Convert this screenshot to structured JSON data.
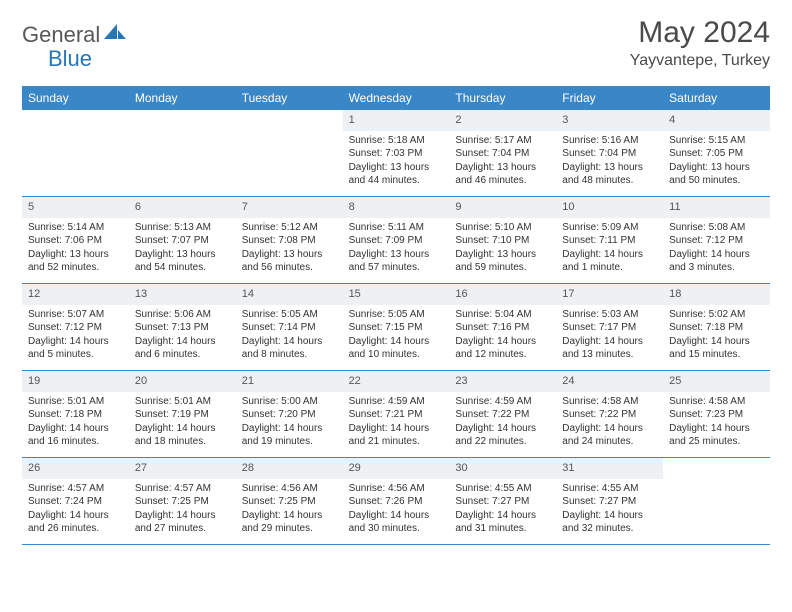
{
  "brand": {
    "part1": "General",
    "part2": "Blue"
  },
  "title": "May 2024",
  "location": "Yayvantepe, Turkey",
  "weekdays": [
    "Sunday",
    "Monday",
    "Tuesday",
    "Wednesday",
    "Thursday",
    "Friday",
    "Saturday"
  ],
  "colors": {
    "header_bg": "#3a87c8",
    "header_text": "#ffffff",
    "daynum_bg": "#eef1f3",
    "row_border": "#3a87c8",
    "title_color": "#4a4a4a",
    "body_text": "#333333"
  },
  "typography": {
    "month_title_fontsize": 30,
    "location_fontsize": 16,
    "weekday_fontsize": 12,
    "daynum_fontsize": 11,
    "body_fontsize": 10
  },
  "weeks": [
    [
      {
        "n": "",
        "sr": "",
        "ss": "",
        "dl": ""
      },
      {
        "n": "",
        "sr": "",
        "ss": "",
        "dl": ""
      },
      {
        "n": "",
        "sr": "",
        "ss": "",
        "dl": ""
      },
      {
        "n": "1",
        "sr": "Sunrise: 5:18 AM",
        "ss": "Sunset: 7:03 PM",
        "dl": "Daylight: 13 hours and 44 minutes."
      },
      {
        "n": "2",
        "sr": "Sunrise: 5:17 AM",
        "ss": "Sunset: 7:04 PM",
        "dl": "Daylight: 13 hours and 46 minutes."
      },
      {
        "n": "3",
        "sr": "Sunrise: 5:16 AM",
        "ss": "Sunset: 7:04 PM",
        "dl": "Daylight: 13 hours and 48 minutes."
      },
      {
        "n": "4",
        "sr": "Sunrise: 5:15 AM",
        "ss": "Sunset: 7:05 PM",
        "dl": "Daylight: 13 hours and 50 minutes."
      }
    ],
    [
      {
        "n": "5",
        "sr": "Sunrise: 5:14 AM",
        "ss": "Sunset: 7:06 PM",
        "dl": "Daylight: 13 hours and 52 minutes."
      },
      {
        "n": "6",
        "sr": "Sunrise: 5:13 AM",
        "ss": "Sunset: 7:07 PM",
        "dl": "Daylight: 13 hours and 54 minutes."
      },
      {
        "n": "7",
        "sr": "Sunrise: 5:12 AM",
        "ss": "Sunset: 7:08 PM",
        "dl": "Daylight: 13 hours and 56 minutes."
      },
      {
        "n": "8",
        "sr": "Sunrise: 5:11 AM",
        "ss": "Sunset: 7:09 PM",
        "dl": "Daylight: 13 hours and 57 minutes."
      },
      {
        "n": "9",
        "sr": "Sunrise: 5:10 AM",
        "ss": "Sunset: 7:10 PM",
        "dl": "Daylight: 13 hours and 59 minutes."
      },
      {
        "n": "10",
        "sr": "Sunrise: 5:09 AM",
        "ss": "Sunset: 7:11 PM",
        "dl": "Daylight: 14 hours and 1 minute."
      },
      {
        "n": "11",
        "sr": "Sunrise: 5:08 AM",
        "ss": "Sunset: 7:12 PM",
        "dl": "Daylight: 14 hours and 3 minutes."
      }
    ],
    [
      {
        "n": "12",
        "sr": "Sunrise: 5:07 AM",
        "ss": "Sunset: 7:12 PM",
        "dl": "Daylight: 14 hours and 5 minutes."
      },
      {
        "n": "13",
        "sr": "Sunrise: 5:06 AM",
        "ss": "Sunset: 7:13 PM",
        "dl": "Daylight: 14 hours and 6 minutes."
      },
      {
        "n": "14",
        "sr": "Sunrise: 5:05 AM",
        "ss": "Sunset: 7:14 PM",
        "dl": "Daylight: 14 hours and 8 minutes."
      },
      {
        "n": "15",
        "sr": "Sunrise: 5:05 AM",
        "ss": "Sunset: 7:15 PM",
        "dl": "Daylight: 14 hours and 10 minutes."
      },
      {
        "n": "16",
        "sr": "Sunrise: 5:04 AM",
        "ss": "Sunset: 7:16 PM",
        "dl": "Daylight: 14 hours and 12 minutes."
      },
      {
        "n": "17",
        "sr": "Sunrise: 5:03 AM",
        "ss": "Sunset: 7:17 PM",
        "dl": "Daylight: 14 hours and 13 minutes."
      },
      {
        "n": "18",
        "sr": "Sunrise: 5:02 AM",
        "ss": "Sunset: 7:18 PM",
        "dl": "Daylight: 14 hours and 15 minutes."
      }
    ],
    [
      {
        "n": "19",
        "sr": "Sunrise: 5:01 AM",
        "ss": "Sunset: 7:18 PM",
        "dl": "Daylight: 14 hours and 16 minutes."
      },
      {
        "n": "20",
        "sr": "Sunrise: 5:01 AM",
        "ss": "Sunset: 7:19 PM",
        "dl": "Daylight: 14 hours and 18 minutes."
      },
      {
        "n": "21",
        "sr": "Sunrise: 5:00 AM",
        "ss": "Sunset: 7:20 PM",
        "dl": "Daylight: 14 hours and 19 minutes."
      },
      {
        "n": "22",
        "sr": "Sunrise: 4:59 AM",
        "ss": "Sunset: 7:21 PM",
        "dl": "Daylight: 14 hours and 21 minutes."
      },
      {
        "n": "23",
        "sr": "Sunrise: 4:59 AM",
        "ss": "Sunset: 7:22 PM",
        "dl": "Daylight: 14 hours and 22 minutes."
      },
      {
        "n": "24",
        "sr": "Sunrise: 4:58 AM",
        "ss": "Sunset: 7:22 PM",
        "dl": "Daylight: 14 hours and 24 minutes."
      },
      {
        "n": "25",
        "sr": "Sunrise: 4:58 AM",
        "ss": "Sunset: 7:23 PM",
        "dl": "Daylight: 14 hours and 25 minutes."
      }
    ],
    [
      {
        "n": "26",
        "sr": "Sunrise: 4:57 AM",
        "ss": "Sunset: 7:24 PM",
        "dl": "Daylight: 14 hours and 26 minutes."
      },
      {
        "n": "27",
        "sr": "Sunrise: 4:57 AM",
        "ss": "Sunset: 7:25 PM",
        "dl": "Daylight: 14 hours and 27 minutes."
      },
      {
        "n": "28",
        "sr": "Sunrise: 4:56 AM",
        "ss": "Sunset: 7:25 PM",
        "dl": "Daylight: 14 hours and 29 minutes."
      },
      {
        "n": "29",
        "sr": "Sunrise: 4:56 AM",
        "ss": "Sunset: 7:26 PM",
        "dl": "Daylight: 14 hours and 30 minutes."
      },
      {
        "n": "30",
        "sr": "Sunrise: 4:55 AM",
        "ss": "Sunset: 7:27 PM",
        "dl": "Daylight: 14 hours and 31 minutes."
      },
      {
        "n": "31",
        "sr": "Sunrise: 4:55 AM",
        "ss": "Sunset: 7:27 PM",
        "dl": "Daylight: 14 hours and 32 minutes."
      },
      {
        "n": "",
        "sr": "",
        "ss": "",
        "dl": ""
      }
    ]
  ]
}
